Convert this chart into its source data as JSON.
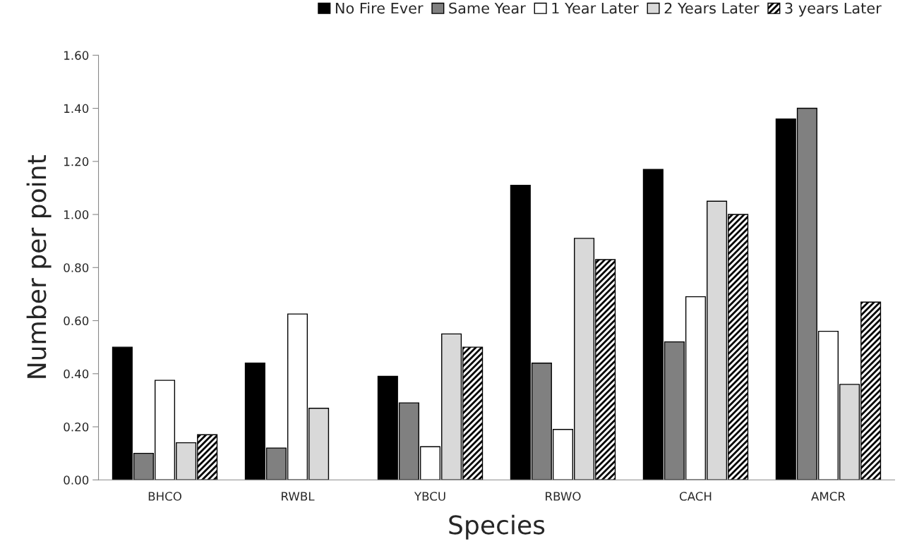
{
  "chart_data": {
    "type": "bar",
    "xlabel": "Species",
    "ylabel": "Number per point",
    "categories": [
      "BHCO",
      "RWBL",
      "YBCU",
      "RBWO",
      "CACH",
      "AMCR"
    ],
    "series": [
      {
        "name": "No Fire Ever",
        "color": "#000000",
        "values": [
          0.5,
          0.44,
          0.39,
          1.11,
          1.17,
          1.36
        ]
      },
      {
        "name": "Same Year",
        "color": "#808080",
        "values": [
          0.1,
          0.12,
          0.29,
          0.44,
          0.52,
          1.4
        ]
      },
      {
        "name": "1 Year Later",
        "color": "#ffffff",
        "values": [
          0.375,
          0.625,
          0.125,
          0.19,
          0.69,
          0.56
        ]
      },
      {
        "name": "2 Years Later",
        "color": "#d9d9d9",
        "values": [
          0.14,
          0.27,
          0.55,
          0.91,
          1.05,
          0.36
        ]
      },
      {
        "name": "3 years Later",
        "color": "#000000",
        "values": [
          0.17,
          0,
          0.5,
          0.83,
          1.0,
          0.67
        ]
      }
    ],
    "ylim": [
      0,
      1.6
    ],
    "yticks": [
      {
        "value": 0,
        "label": "0.00"
      },
      {
        "value": 0.2,
        "label": "0.20"
      },
      {
        "value": 0.4,
        "label": "0.40"
      },
      {
        "value": 0.6,
        "label": "0.60"
      },
      {
        "value": 0.8,
        "label": "0.80"
      },
      {
        "value": 1.0,
        "label": "1.00"
      },
      {
        "value": 1.2,
        "label": "1.20"
      },
      {
        "value": 1.4,
        "label": "1.40"
      },
      {
        "value": 1.6,
        "label": "1.60"
      }
    ],
    "grid": false,
    "legend": "top right"
  }
}
